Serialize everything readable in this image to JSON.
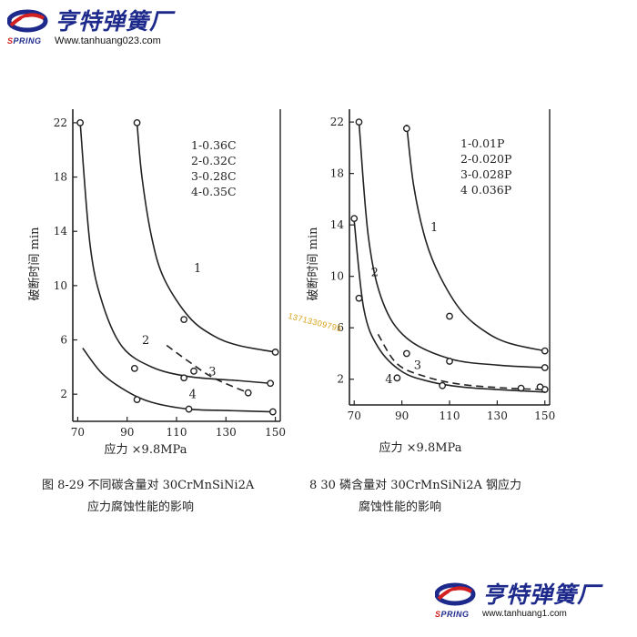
{
  "brand": {
    "name": "亨特弹簧厂",
    "url_top": "Www.tanhuang023.com",
    "url_bottom": "www.tanhuang1.com",
    "logo_word": "SPRING",
    "colors": {
      "navy": "#1d2a8c",
      "red": "#d42020"
    }
  },
  "watermark": {
    "text": "13713309795"
  },
  "chart_data": [
    {
      "type": "line",
      "caption": [
        "图 8-29   不同碳含量对 30CrMnSiNi2A",
        "应力腐蚀性能的影响"
      ],
      "xlabel": "应力 ×9.8MPa",
      "ylabel": "破断时间 min",
      "xlim": [
        68,
        152
      ],
      "ylim": [
        0,
        23
      ],
      "xticks": [
        70,
        90,
        110,
        130,
        150
      ],
      "yticks": [
        2,
        6,
        10,
        14,
        18,
        22
      ],
      "grid": false,
      "legend_position": "top-right",
      "legend": [
        "1-0.36C",
        "2-0.32C",
        "3-0.28C",
        "4-0.35C"
      ],
      "series": [
        {
          "name": "1",
          "x": [
            94,
            96,
            100,
            105,
            115,
            125,
            135,
            150
          ],
          "y": [
            22,
            18,
            13.5,
            10.5,
            7.7,
            6.3,
            5.6,
            5.1
          ],
          "markers": [
            [
              94,
              22
            ],
            [
              113,
              7.5
            ],
            [
              150,
              5.1
            ]
          ],
          "label_at": [
            117,
            11
          ],
          "dash": false
        },
        {
          "name": "2",
          "x": [
            71,
            75,
            80,
            88,
            100,
            115,
            135,
            148
          ],
          "y": [
            22,
            13,
            8.7,
            5.5,
            4.0,
            3.3,
            3.0,
            2.8
          ],
          "markers": [
            [
              71,
              22
            ],
            [
              93,
              3.9
            ],
            [
              113,
              3.2
            ],
            [
              148,
              2.8
            ]
          ],
          "label_at": [
            96,
            5.7
          ],
          "dash": false
        },
        {
          "name": "3",
          "x": [
            106,
            115,
            125,
            139
          ],
          "y": [
            5.6,
            4.4,
            3.2,
            2.1
          ],
          "markers": [
            [
              117,
              3.7
            ],
            [
              139,
              2.1
            ]
          ],
          "label_at": [
            123,
            3.4
          ],
          "dash": true
        },
        {
          "name": "4",
          "x": [
            72,
            80,
            90,
            100,
            115,
            130,
            149
          ],
          "y": [
            5.4,
            3.5,
            2.2,
            1.4,
            0.9,
            0.8,
            0.7
          ],
          "markers": [
            [
              94,
              1.6
            ],
            [
              115,
              0.9
            ],
            [
              149,
              0.7
            ]
          ],
          "label_at": [
            115,
            1.7
          ],
          "dash": false
        }
      ]
    },
    {
      "type": "line",
      "caption": [
        "8 30   磷含量对 30CrMnSiNi2A 钢应力",
        "腐蚀性能的影响"
      ],
      "xlabel": "应力 ×9.8MPa",
      "ylabel": "破断时间 min",
      "xlim": [
        68,
        152
      ],
      "ylim": [
        0,
        23
      ],
      "xticks": [
        70,
        90,
        110,
        130,
        150
      ],
      "yticks": [
        2,
        6,
        10,
        14,
        18,
        22
      ],
      "grid": false,
      "legend_position": "top-right",
      "legend": [
        "1-0.01P",
        "2-0.020P",
        "3-0.028P",
        "4 0.036P"
      ],
      "series": [
        {
          "name": "1",
          "x": [
            92,
            95,
            100,
            106,
            115,
            125,
            135,
            150
          ],
          "y": [
            21.8,
            17,
            12.8,
            10,
            7.3,
            5.7,
            4.8,
            4.2
          ],
          "markers": [
            [
              92,
              21.5
            ],
            [
              110,
              6.9
            ],
            [
              150,
              4.2
            ]
          ],
          "label_at": [
            102,
            13.5
          ],
          "dash": false
        },
        {
          "name": "2",
          "x": [
            72,
            76,
            82,
            92,
            110,
            130,
            150
          ],
          "y": [
            22,
            13,
            8,
            5.2,
            3.6,
            3.1,
            2.9
          ],
          "markers": [
            [
              72,
              22
            ],
            [
              92,
              4.0
            ],
            [
              110,
              3.4
            ],
            [
              150,
              2.9
            ]
          ],
          "label_at": [
            77,
            10
          ],
          "dash": false
        },
        {
          "name": "3",
          "x": [
            80,
            88,
            100,
            115,
            135,
            150
          ],
          "y": [
            5.5,
            3.2,
            2.2,
            1.6,
            1.3,
            1.2
          ],
          "markers": [
            [
              140,
              1.3
            ],
            [
              150,
              1.2
            ]
          ],
          "label_at": [
            95,
            2.8
          ],
          "dash": true
        },
        {
          "name": "4",
          "x": [
            70,
            74,
            80,
            90,
            102,
            115,
            130,
            150
          ],
          "y": [
            14.3,
            7.5,
            4.5,
            2.6,
            1.8,
            1.4,
            1.2,
            1.0
          ],
          "markers": [
            [
              70,
              14.5
            ],
            [
              72,
              8.3
            ],
            [
              88,
              2.1
            ],
            [
              107,
              1.5
            ],
            [
              148,
              1.4
            ]
          ],
          "label_at": [
            83,
            1.7
          ],
          "dash": false
        }
      ]
    }
  ]
}
